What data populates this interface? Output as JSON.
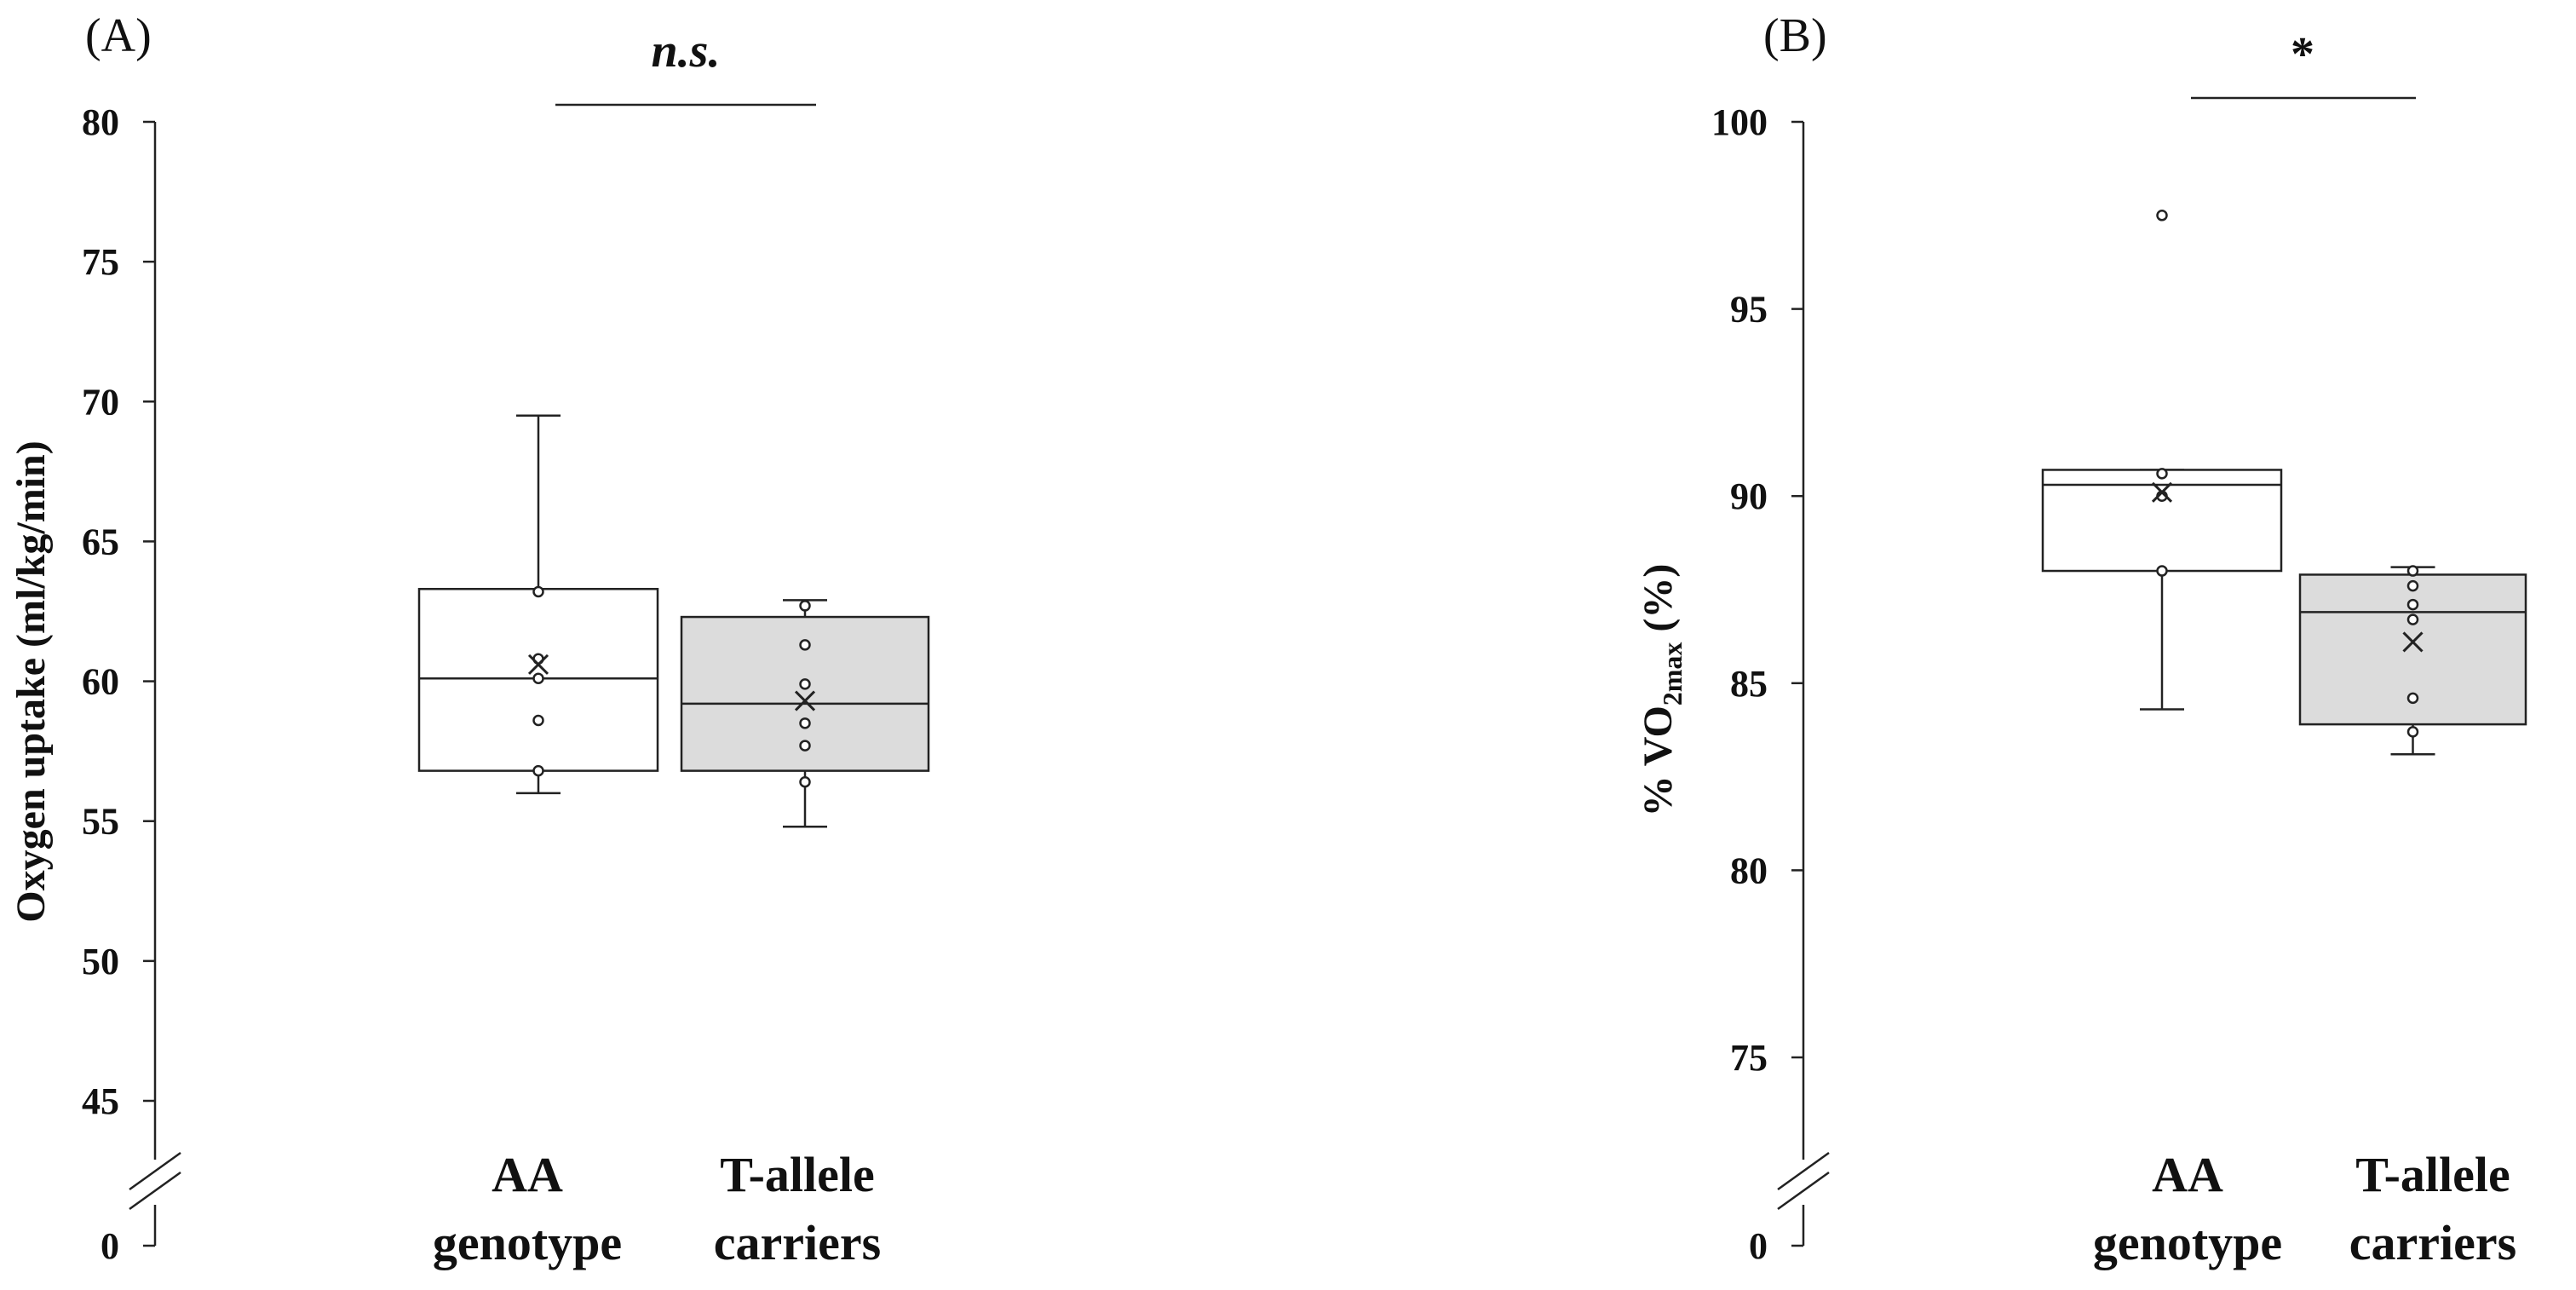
{
  "chart_data": [
    {
      "type": "box",
      "panel_label": "(A)",
      "ylabel": "Oxygen  uptake (ml/kg/min)",
      "ylim": [
        45,
        80
      ],
      "y_ticks": [
        80,
        75,
        70,
        65,
        60,
        55,
        50,
        45
      ],
      "axis_break": true,
      "axis_origin_label": "0",
      "categories": [
        {
          "line1": "AA",
          "line2": "genotype"
        },
        {
          "line1": "T-allele",
          "line2": "carriers"
        }
      ],
      "significance": {
        "label": "n.s.",
        "italic": true
      },
      "boxes": [
        {
          "name": "AA genotype",
          "fill": "#ffffff",
          "q1": 56.8,
          "median": 60.1,
          "q3": 63.3,
          "whisker_low": 56.0,
          "whisker_high": 69.5,
          "mean": 60.6,
          "points": [
            63.2,
            60.8,
            60.1,
            58.6,
            56.8
          ]
        },
        {
          "name": "T-allele carriers",
          "fill": "#dcdcdc",
          "q1": 56.8,
          "median": 59.2,
          "q3": 62.3,
          "whisker_low": 54.8,
          "whisker_high": 62.9,
          "mean": 59.3,
          "points": [
            62.7,
            61.3,
            59.9,
            58.5,
            57.7,
            56.4
          ]
        }
      ]
    },
    {
      "type": "box",
      "panel_label": "(B)",
      "ylabel": "% VO",
      "ylabel_sub": "2max",
      "ylabel_suffix": " (%)",
      "ylim": [
        75,
        100
      ],
      "y_ticks": [
        100,
        95,
        90,
        85,
        80,
        75
      ],
      "axis_break": true,
      "axis_origin_label": "0",
      "categories": [
        {
          "line1": "AA",
          "line2": "genotype"
        },
        {
          "line1": "T-allele",
          "line2": "carriers"
        }
      ],
      "significance": {
        "label": "*",
        "italic": false
      },
      "boxes": [
        {
          "name": "AA genotype",
          "fill": "#ffffff",
          "q1": 88.0,
          "median": 90.3,
          "q3": 90.7,
          "whisker_low": 84.3,
          "whisker_high": 90.7,
          "mean": 90.1,
          "points": [
            97.5,
            90.6,
            90.0,
            88.0
          ]
        },
        {
          "name": "T-allele carriers",
          "fill": "#dcdcdc",
          "q1": 83.9,
          "median": 86.9,
          "q3": 87.9,
          "whisker_low": 83.1,
          "whisker_high": 88.1,
          "mean": 86.1,
          "points": [
            88.0,
            87.6,
            87.1,
            86.7,
            84.6,
            83.7
          ]
        }
      ]
    }
  ]
}
